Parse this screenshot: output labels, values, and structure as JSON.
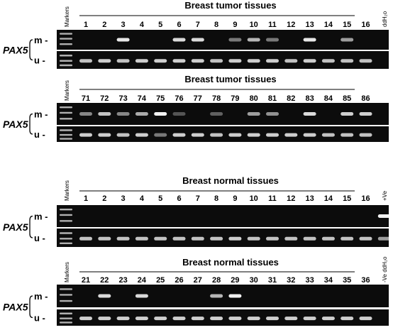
{
  "panels": [
    {
      "title": "Breast  tumor tissues",
      "markers_label": "Markers",
      "gene": "PAX5",
      "m_label": "m -",
      "u_label": "u -",
      "lanes": [
        "1",
        "2",
        "3",
        "4",
        "5",
        "6",
        "7",
        "8",
        "9",
        "10",
        "11",
        "12",
        "13",
        "14",
        "15",
        "16"
      ],
      "extra_lane": {
        "label": "ddH₂o",
        "vertical": true
      },
      "m_band": [
        0,
        0,
        0.9,
        0,
        0,
        0.85,
        0.85,
        0,
        0.45,
        0.7,
        0.45,
        0,
        0.9,
        0,
        0.6,
        0,
        0
      ],
      "u_band": [
        0.75,
        0.8,
        0.75,
        0.8,
        0.8,
        0.8,
        0.8,
        0.75,
        0.8,
        0.8,
        0.8,
        0.75,
        0.8,
        0.75,
        0.75,
        0.75,
        0
      ]
    },
    {
      "title": "Breast  tumor tissues",
      "markers_label": "Markers",
      "gene": "PAX5",
      "m_label": "m -",
      "u_label": "u -",
      "lanes": [
        "71",
        "72",
        "73",
        "74",
        "75",
        "76",
        "77",
        "78",
        "79",
        "80",
        "81",
        "82",
        "83",
        "84",
        "85",
        "86"
      ],
      "extra_lane": null,
      "m_band": [
        0.5,
        0.75,
        0.5,
        0.65,
        0.95,
        0.3,
        0,
        0.35,
        0,
        0.6,
        0.55,
        0,
        0.85,
        0,
        0.8,
        0.8
      ],
      "u_band": [
        0.8,
        0.8,
        0.75,
        0.8,
        0.45,
        0.8,
        0.8,
        0.75,
        0.8,
        0.8,
        0.8,
        0.8,
        0.8,
        0.75,
        0.75,
        0.75
      ]
    },
    {
      "title": "Breast  normal tissues",
      "markers_label": "Markers",
      "gene": "PAX5",
      "m_label": "m -",
      "u_label": "u -",
      "lanes": [
        "1",
        "2",
        "3",
        "4",
        "5",
        "6",
        "7",
        "8",
        "9",
        "10",
        "11",
        "12",
        "13",
        "14",
        "15",
        "16"
      ],
      "extra_lane": {
        "label": "+Ve",
        "vertical": true
      },
      "m_band": [
        0,
        0,
        0,
        0,
        0,
        0,
        0,
        0,
        0,
        0,
        0,
        0,
        0,
        0,
        0,
        0,
        0.95
      ],
      "u_band": [
        0.75,
        0.75,
        0.75,
        0.75,
        0.75,
        0.75,
        0.75,
        0.75,
        0.8,
        0.75,
        0.75,
        0.75,
        0.75,
        0.75,
        0.75,
        0.75,
        0.6
      ]
    },
    {
      "title": "Breast  normal tissues",
      "markers_label": "Markers",
      "gene": "PAX5",
      "m_label": "m -",
      "u_label": "u -",
      "lanes": [
        "21",
        "22",
        "23",
        "24",
        "25",
        "26",
        "27",
        "28",
        "29",
        "30",
        "31",
        "32",
        "33",
        "34",
        "35",
        "36"
      ],
      "extra_lane": {
        "label": "-Ve ddH₂o",
        "vertical": true
      },
      "m_band": [
        0,
        0.85,
        0,
        0.85,
        0,
        0,
        0,
        0.7,
        0.95,
        0,
        0,
        0,
        0,
        0,
        0,
        0,
        0
      ],
      "u_band": [
        0.8,
        0.8,
        0.8,
        0.8,
        0.8,
        0.8,
        0.8,
        0.8,
        0.8,
        0.8,
        0.8,
        0.8,
        0.8,
        0.8,
        0.8,
        0.8,
        0
      ]
    }
  ],
  "colors": {
    "gel_background": "#0c0c0c",
    "band_color": "#ffffff",
    "text": "#000000"
  }
}
